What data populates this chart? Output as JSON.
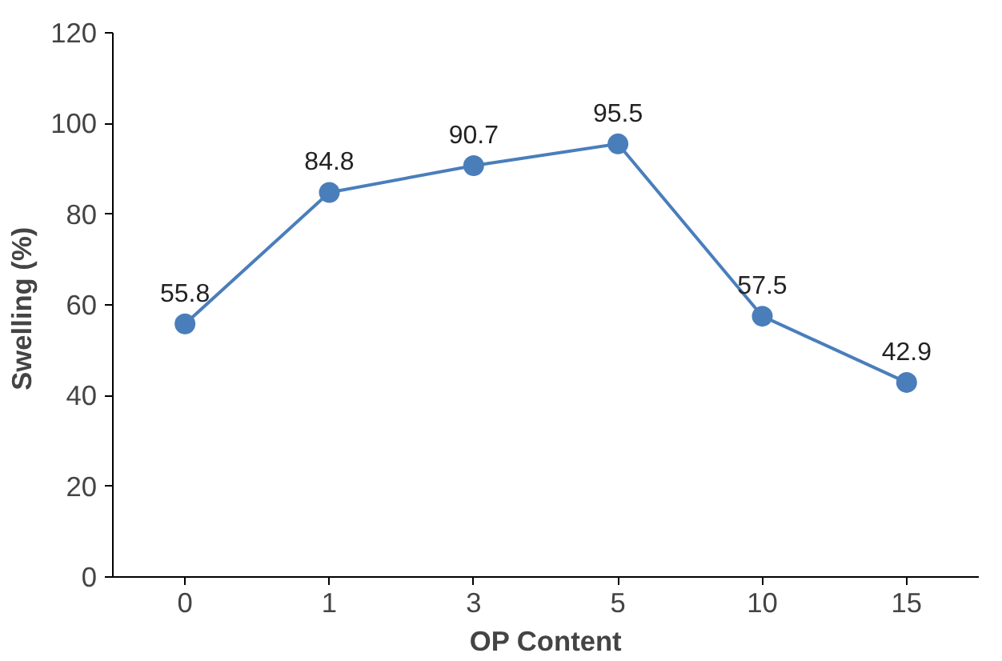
{
  "chart_data": {
    "type": "line",
    "xlabel": "OP Content",
    "ylabel": "Swelling  (%)",
    "categories": [
      "0",
      "1",
      "3",
      "5",
      "10",
      "15"
    ],
    "series": [
      {
        "color": "#4a7ebb",
        "values": [
          55.8,
          84.8,
          90.7,
          95.5,
          57.5,
          42.9
        ]
      }
    ],
    "ylim": [
      0,
      120
    ],
    "yticks": [
      0,
      20,
      40,
      60,
      80,
      100,
      120
    ],
    "grid": false,
    "marker": "circle",
    "line_style": "solid",
    "data_labels": true
  }
}
